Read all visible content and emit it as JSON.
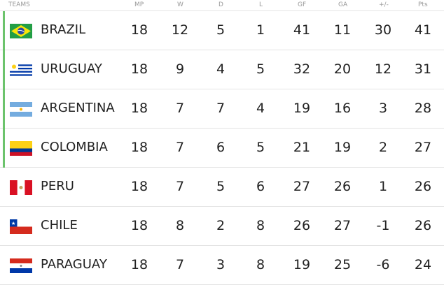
{
  "header": {
    "teams": "TEAMS",
    "mp": "MP",
    "w": "W",
    "d": "D",
    "l": "L",
    "gf": "GF",
    "ga": "GA",
    "gd": "+/-",
    "pts": "Pts"
  },
  "qualify_color": "#6cc36c",
  "rows": [
    {
      "team": "BRAZIL",
      "flag": "brazil-flag",
      "qualified": true,
      "mp": "18",
      "w": "12",
      "d": "5",
      "l": "1",
      "gf": "41",
      "ga": "11",
      "gd": "30",
      "pts": "41"
    },
    {
      "team": "URUGUAY",
      "flag": "uruguay-flag",
      "qualified": true,
      "mp": "18",
      "w": "9",
      "d": "4",
      "l": "5",
      "gf": "32",
      "ga": "20",
      "gd": "12",
      "pts": "31"
    },
    {
      "team": "ARGENTINA",
      "flag": "argentina-flag",
      "qualified": true,
      "mp": "18",
      "w": "7",
      "d": "7",
      "l": "4",
      "gf": "19",
      "ga": "16",
      "gd": "3",
      "pts": "28"
    },
    {
      "team": "COLOMBIA",
      "flag": "colombia-flag",
      "qualified": true,
      "mp": "18",
      "w": "7",
      "d": "6",
      "l": "5",
      "gf": "21",
      "ga": "19",
      "gd": "2",
      "pts": "27"
    },
    {
      "team": "PERU",
      "flag": "peru-flag",
      "qualified": false,
      "mp": "18",
      "w": "7",
      "d": "5",
      "l": "6",
      "gf": "27",
      "ga": "26",
      "gd": "1",
      "pts": "26"
    },
    {
      "team": "CHILE",
      "flag": "chile-flag",
      "qualified": false,
      "mp": "18",
      "w": "8",
      "d": "2",
      "l": "8",
      "gf": "26",
      "ga": "27",
      "gd": "-1",
      "pts": "26"
    },
    {
      "team": "PARAGUAY",
      "flag": "paraguay-flag",
      "qualified": false,
      "mp": "18",
      "w": "7",
      "d": "3",
      "l": "8",
      "gf": "19",
      "ga": "25",
      "gd": "-6",
      "pts": "24"
    }
  ]
}
